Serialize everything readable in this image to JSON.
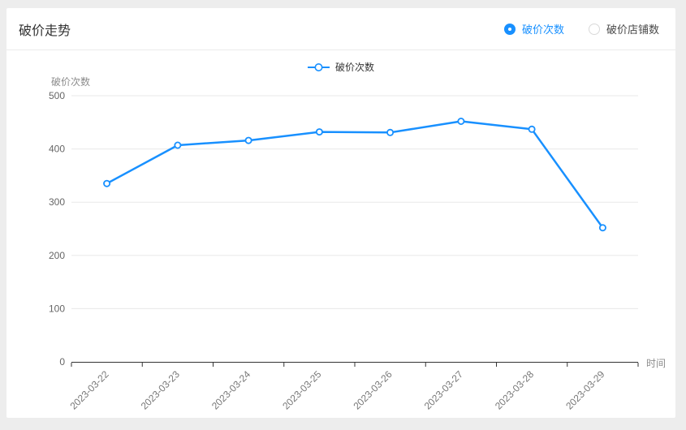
{
  "card": {
    "title": "破价走势",
    "radio_group": [
      {
        "label": "破价次数",
        "selected": true
      },
      {
        "label": "破价店铺数",
        "selected": false
      }
    ]
  },
  "legend": {
    "label": "破价次数"
  },
  "chart_data": {
    "type": "line",
    "series_name": "破价次数",
    "categories": [
      "2023-03-22",
      "2023-03-23",
      "2023-03-24",
      "2023-03-25",
      "2023-03-26",
      "2023-03-27",
      "2023-03-28",
      "2023-03-29"
    ],
    "values": [
      335,
      407,
      416,
      432,
      431,
      452,
      437,
      252
    ],
    "xlabel": "时间",
    "ylabel": "破价次数",
    "ylim": [
      0,
      500
    ],
    "y_ticks": [
      0,
      100,
      200,
      300,
      400,
      500
    ],
    "grid": true,
    "legend_position": "top-center",
    "marker": "hollow-circle"
  },
  "colors": {
    "accent": "#1890ff",
    "grid_line": "#e8e8e8",
    "axis_line": "#333333",
    "y_tick_label": "#666666",
    "x_tick_label": "#777777",
    "axis_name": "#8c8c8c",
    "card_bg": "#ffffff",
    "page_bg": "#ededed"
  }
}
